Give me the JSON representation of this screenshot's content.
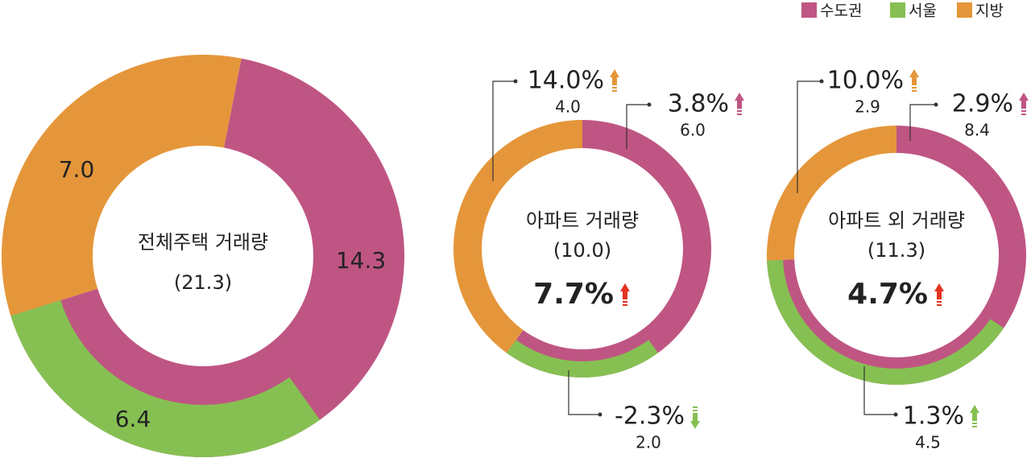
{
  "chart_data": [
    {
      "type": "donut",
      "title": "전체주택 거래량",
      "total": 21.3,
      "total_label": "(21.3)",
      "series": [
        {
          "name": "수도권",
          "color": "#bf5583",
          "value": 14.3,
          "value_label": "14.3"
        },
        {
          "name": "서울",
          "color": "#86c052",
          "value": 6.4,
          "value_label": "6.4"
        },
        {
          "name": "지방",
          "color": "#e5963a",
          "value": 7.0,
          "value_label": "7.0"
        }
      ]
    },
    {
      "type": "donut",
      "title": "아파트 거래량",
      "total": 10.0,
      "total_label": "(10.0)",
      "change": 7.7,
      "change_label": "7.7%",
      "series": [
        {
          "name": "수도권",
          "color": "#bf5583",
          "value": 6.0,
          "value_label": "6.0",
          "change": 3.8,
          "change_label": "3.8%"
        },
        {
          "name": "서울",
          "color": "#86c052",
          "value": 2.0,
          "value_label": "2.0",
          "change": -2.3,
          "change_label": "-2.3%"
        },
        {
          "name": "지방",
          "color": "#e5963a",
          "value": 4.0,
          "value_label": "4.0",
          "change": 14.0,
          "change_label": "14.0%"
        }
      ]
    },
    {
      "type": "donut",
      "title": "아파트 외 거래량",
      "total": 11.3,
      "total_label": "(11.3)",
      "change": 4.7,
      "change_label": "4.7%",
      "series": [
        {
          "name": "수도권",
          "color": "#bf5583",
          "value": 8.4,
          "value_label": "8.4",
          "change": 2.9,
          "change_label": "2.9%"
        },
        {
          "name": "서울",
          "color": "#86c052",
          "value": 4.5,
          "value_label": "4.5",
          "change": 1.3,
          "change_label": "1.3%"
        },
        {
          "name": "지방",
          "color": "#e5963a",
          "value": 2.9,
          "value_label": "2.9",
          "change": 10.0,
          "change_label": "10.0%"
        }
      ]
    }
  ]
}
